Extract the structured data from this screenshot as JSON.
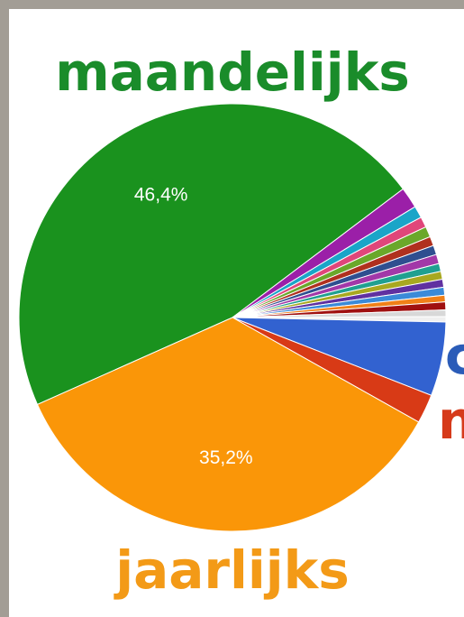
{
  "chart_data": {
    "type": "pie",
    "categories": [
      "maandelijks",
      null,
      null,
      null,
      null,
      null,
      null,
      null,
      null,
      null,
      null,
      null,
      null,
      null,
      null,
      null,
      "c",
      "n",
      "jaarlijks"
    ],
    "values": [
      46.4,
      1.6,
      0.9,
      0.8,
      0.8,
      0.7,
      0.7,
      0.7,
      0.6,
      0.6,
      0.6,
      0.6,
      0.5,
      0.6,
      0.5,
      0.4,
      5.6,
      2.2,
      35.2
    ],
    "value_labels": [
      "46,4%",
      null,
      null,
      null,
      null,
      null,
      null,
      null,
      null,
      null,
      null,
      null,
      null,
      null,
      null,
      null,
      null,
      null,
      "35,2%"
    ],
    "colors": [
      "#1a921e",
      "#9b1fa8",
      "#1aa5c8",
      "#e0467a",
      "#6aa82a",
      "#b0301e",
      "#2f4f90",
      "#a238a8",
      "#20a090",
      "#a8a820",
      "#6030a0",
      "#3a8ad8",
      "#f08018",
      "#a01010",
      "#d8d8d8",
      "#f0f0f0",
      "#3262d0",
      "#d83a16",
      "#fa9608"
    ],
    "label_colors": {
      "maandelijks": "#1a8c2a",
      "jaarlijks": "#f39a17",
      "c": "#2b5cb8",
      "n": "#d63a1a"
    }
  }
}
